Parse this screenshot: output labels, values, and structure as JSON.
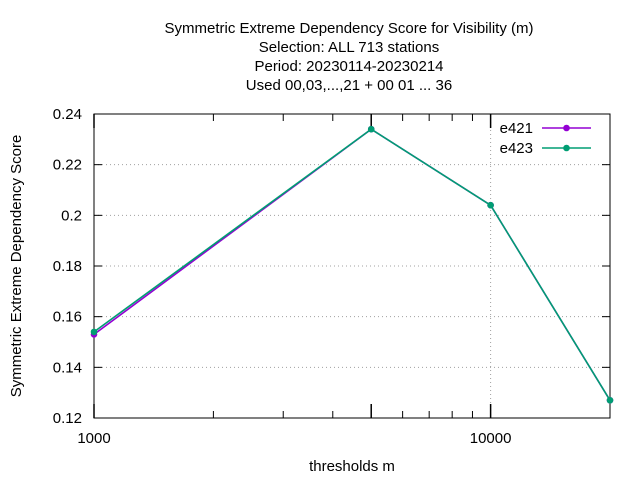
{
  "chart_data": {
    "type": "line",
    "title_lines": [
      "Symmetric Extreme Dependency Score  for Visibility (m)",
      "Selection: ALL    713 stations",
      "Period: 20230114-20230214",
      "Used  00,03,...,21  + 00 01 ... 36"
    ],
    "xlabel": "thresholds m",
    "ylabel": "Symmetric Extreme Dependency Score",
    "x_scale": "log",
    "xlim": [
      1000,
      20000
    ],
    "ylim": [
      0.12,
      0.24
    ],
    "x_ticks": [
      1000,
      10000
    ],
    "x_tick_labels": [
      "1000",
      "10000"
    ],
    "y_ticks": [
      0.12,
      0.14,
      0.16,
      0.18,
      0.2,
      0.22,
      0.24
    ],
    "y_tick_labels": [
      "0.12",
      "0.14",
      "0.16",
      "0.18",
      "0.2",
      "0.22",
      "0.24"
    ],
    "grid": true,
    "legend_position": "top-right",
    "x": [
      1000,
      5000,
      10000,
      20000
    ],
    "series": [
      {
        "name": "e421",
        "color": "#9400d3",
        "values": [
          0.153,
          0.234,
          0.204,
          0.127
        ]
      },
      {
        "name": "e423",
        "color": "#009e73",
        "values": [
          0.154,
          0.234,
          0.204,
          0.127
        ]
      }
    ]
  }
}
